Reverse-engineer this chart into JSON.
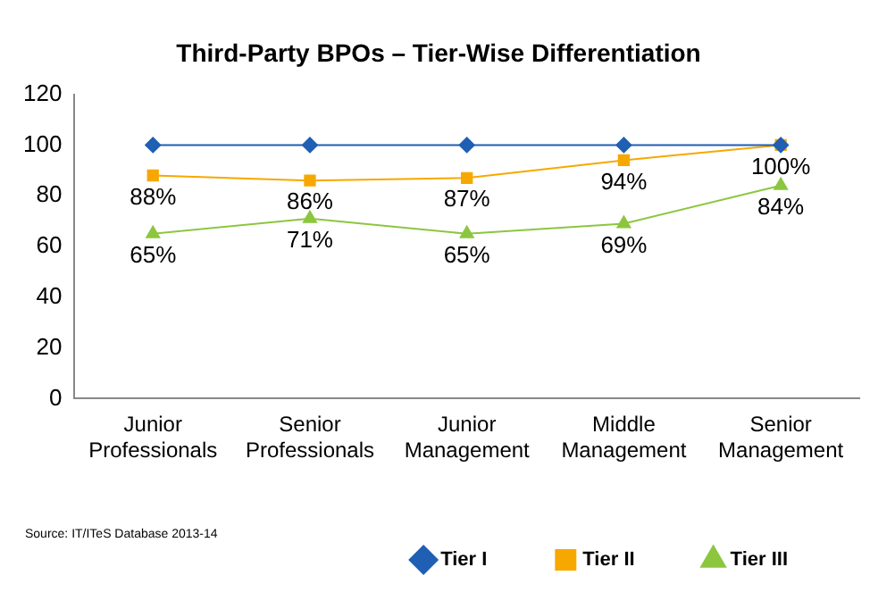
{
  "chart_data": {
    "type": "line",
    "title": "Third-Party BPOs – Tier-Wise Differentiation",
    "categories": [
      "Junior Professionals",
      "Senior Professionals",
      "Junior Management",
      "Middle Management",
      "Senior Management"
    ],
    "series": [
      {
        "name": "Tier I",
        "color": "#1f5fb4",
        "marker": "diamond",
        "values": [
          100,
          100,
          100,
          100,
          100
        ]
      },
      {
        "name": "Tier II",
        "color": "#f7a800",
        "marker": "square",
        "values": [
          88,
          86,
          87,
          94,
          100
        ],
        "value_labels": [
          "88%",
          "86%",
          "87%",
          "94%",
          "100%"
        ]
      },
      {
        "name": "Tier III",
        "color": "#8cc63f",
        "marker": "triangle",
        "values": [
          65,
          71,
          65,
          69,
          84
        ],
        "value_labels": [
          "65%",
          "71%",
          "65%",
          "69%",
          "84%"
        ]
      }
    ],
    "ylim": [
      0,
      120
    ],
    "yticks": [
      0,
      20,
      40,
      60,
      80,
      100,
      120
    ],
    "grid": false,
    "legend": "bottom",
    "annotations": [
      "Source: IT/ITeS Database 2013-14"
    ]
  }
}
